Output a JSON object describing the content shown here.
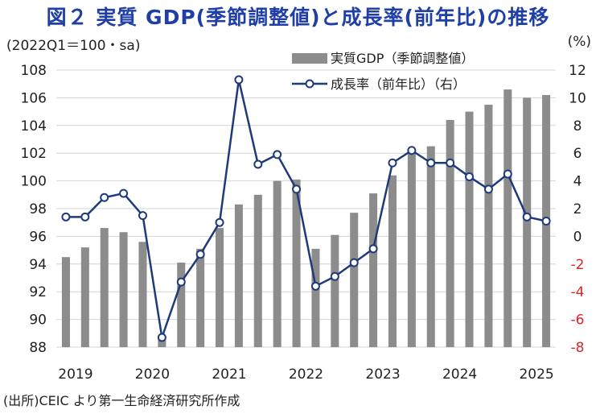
{
  "title": "図２ 実質 GDP(季節調整値)と成長率(前年比)の推移",
  "left_unit": "(2022Q1＝100・sa)",
  "right_unit": "(%)",
  "source": "(出所)CEIC より第一生命経済研究所作成",
  "colors": {
    "bar": "#8c8c8c",
    "line": "#1f3a7a",
    "marker_fill": "#ffffff",
    "title": "#1f3fa6",
    "negative_tick": "#d9262c"
  },
  "chart_data": {
    "type": "bar+line",
    "categories": [
      "2019Q1",
      "2019Q2",
      "2019Q3",
      "2019Q4",
      "2020Q1",
      "2020Q2",
      "2020Q3",
      "2020Q4",
      "2021Q1",
      "2021Q2",
      "2021Q3",
      "2021Q4",
      "2022Q1",
      "2022Q2",
      "2022Q3",
      "2022Q4",
      "2023Q1",
      "2023Q2",
      "2023Q3",
      "2023Q4",
      "2024Q1",
      "2024Q2",
      "2024Q3",
      "2024Q4",
      "2025Q1",
      "2025Q2"
    ],
    "x_labels": [
      "2019",
      "2020",
      "2021",
      "2022",
      "2023",
      "2024",
      "2025"
    ],
    "left_axis": {
      "min": 88,
      "max": 108,
      "ticks": [
        "88",
        "90",
        "92",
        "94",
        "96",
        "98",
        "100",
        "102",
        "104",
        "106",
        "108"
      ]
    },
    "right_axis": {
      "min": -8,
      "max": 12,
      "ticks": [
        "-8",
        "-6",
        "-4",
        "-2",
        "0",
        "2",
        "4",
        "6",
        "8",
        "10",
        "12"
      ]
    },
    "series": [
      {
        "name": "実質GDP（季節調整値）",
        "kind": "bar",
        "axis": "left",
        "values": [
          94.5,
          95.2,
          96.6,
          96.3,
          95.6,
          88.7,
          94.1,
          95.1,
          96.6,
          98.3,
          99.0,
          100.0,
          100.1,
          95.1,
          96.1,
          97.7,
          99.1,
          100.4,
          102.2,
          102.5,
          104.4,
          105.0,
          105.5,
          106.6,
          106.0,
          106.2
        ]
      },
      {
        "name": "成長率（前年比）（右）",
        "kind": "line",
        "axis": "right",
        "values": [
          1.4,
          1.4,
          2.8,
          3.1,
          1.5,
          -7.3,
          -3.3,
          -1.3,
          1.0,
          11.3,
          5.2,
          5.9,
          3.4,
          -3.6,
          -2.9,
          -1.9,
          -0.9,
          5.3,
          6.2,
          5.3,
          5.3,
          4.3,
          3.4,
          4.5,
          1.4,
          1.1
        ]
      }
    ],
    "grid": "horizontal",
    "legend_position": "top-right"
  }
}
